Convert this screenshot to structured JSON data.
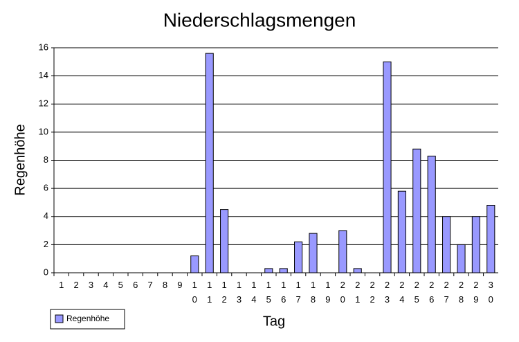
{
  "chart_data": {
    "type": "bar",
    "title": "Niederschlagsmengen",
    "x_label": "Tag",
    "y_label": "Regenhöhe",
    "categories": [
      "1",
      "2",
      "3",
      "4",
      "5",
      "6",
      "7",
      "8",
      "9",
      "10",
      "11",
      "12",
      "13",
      "14",
      "15",
      "16",
      "17",
      "18",
      "19",
      "20",
      "21",
      "22",
      "23",
      "24",
      "25",
      "26",
      "27",
      "28",
      "29",
      "30"
    ],
    "series": [
      {
        "name": "Regenhöhe",
        "color": "#9999ff",
        "values": [
          0,
          0,
          0,
          0,
          0,
          0,
          0,
          0,
          0,
          1.2,
          15.6,
          4.5,
          0,
          0,
          0.3,
          0.3,
          2.2,
          2.8,
          0,
          3.0,
          0.3,
          0,
          15.0,
          5.8,
          8.8,
          8.3,
          4.0,
          2.0,
          4.0,
          4.8
        ]
      }
    ],
    "ylim": [
      0,
      16
    ],
    "yticks": [
      0,
      2,
      4,
      6,
      8,
      10,
      12,
      14,
      16
    ],
    "grid": true,
    "legend": "bottom-left"
  }
}
